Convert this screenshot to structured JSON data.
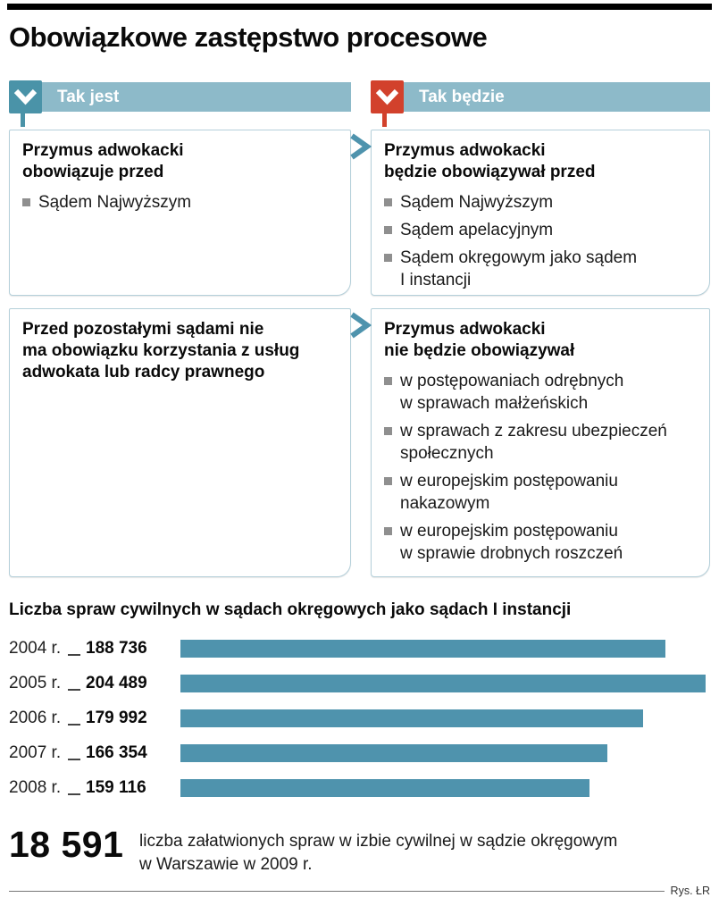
{
  "page_title": "Obowiązkowe zastępstwo procesowe",
  "panels": {
    "current": {
      "header": "Tak jest"
    },
    "future": {
      "header": "Tak będzie"
    }
  },
  "rows": [
    {
      "left": {
        "heading": "Przymus adwokacki\nobowiązuje przed",
        "bullets": [
          "Sądem Najwyższym"
        ]
      },
      "right": {
        "heading": "Przymus adwokacki\nbędzie obowiązywał przed",
        "bullets": [
          "Sądem Najwyższym",
          "Sądem apelacyjnym",
          "Sądem okręgowym jako sądem\nI instancji"
        ]
      }
    },
    {
      "left": {
        "heading": "Przed pozostałymi sądami nie\nma obowiązku korzystania z usług\nadwokata lub radcy prawnego",
        "bullets": []
      },
      "right": {
        "heading": "Przymus adwokacki\nnie będzie obowiązywał",
        "bullets": [
          "w postępowaniach odrębnych\nw sprawach małżeńskich",
          "w sprawach z zakresu ubezpieczeń\nspołecznych",
          "w europejskim postępowaniu\nnakazowym",
          "w europejskim postępowaniu\nw sprawie drobnych roszczeń"
        ]
      }
    }
  ],
  "chart_data": {
    "type": "bar",
    "orientation": "horizontal",
    "title": "Liczba spraw cywilnych w sądach okręgowych jako sądach I instancji",
    "categories": [
      "2004 r.",
      "2005 r.",
      "2006 r.",
      "2007 r.",
      "2008 r."
    ],
    "values": [
      188736,
      204489,
      179992,
      166354,
      159116
    ],
    "value_labels": [
      "188 736",
      "204 489",
      "179 992",
      "166 354",
      "159 116"
    ],
    "xlim": [
      0,
      204489
    ],
    "grid": false,
    "legend": "none",
    "bar_color": "#4f93ad"
  },
  "footer": {
    "big_number": "18 591",
    "description": "liczba załatwionych spraw w izbie cywilnej w sądzie okręgowym\nw Warszawie w 2009 r.",
    "credit": "Rys. ŁR"
  },
  "colors": {
    "header_bar": "#8dbac9",
    "current_icon": "#4a93a8",
    "future_icon": "#d2412c",
    "bar": "#4f93ad",
    "bullet": "#8f8f8f",
    "box_border": "#b5d0da",
    "top_rule": "#000000"
  }
}
